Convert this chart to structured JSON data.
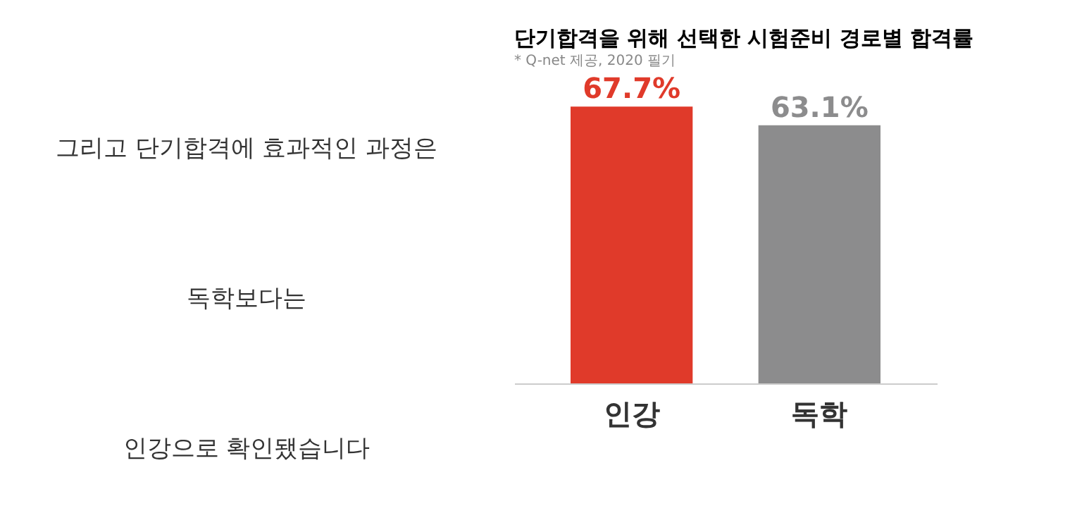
{
  "chart_data": [
    {
      "type": "other",
      "annotations": [
        "그리고 단기합격에 효과적인 과정은",
        "독학보다는",
        "인강으로 확인됐습니다"
      ]
    },
    {
      "type": "bar",
      "title": "단기합격을 위해 선택한 시험준비 경로별 합격률",
      "subtitle": "* Q-net 제공, 2020 필기",
      "categories": [
        "인강",
        "독학"
      ],
      "values": [
        67.7,
        63.1
      ],
      "colors": [
        "#e03a2a",
        "#8c8c8d"
      ],
      "value_labels": [
        "67.7%",
        "63.1%"
      ]
    }
  ]
}
